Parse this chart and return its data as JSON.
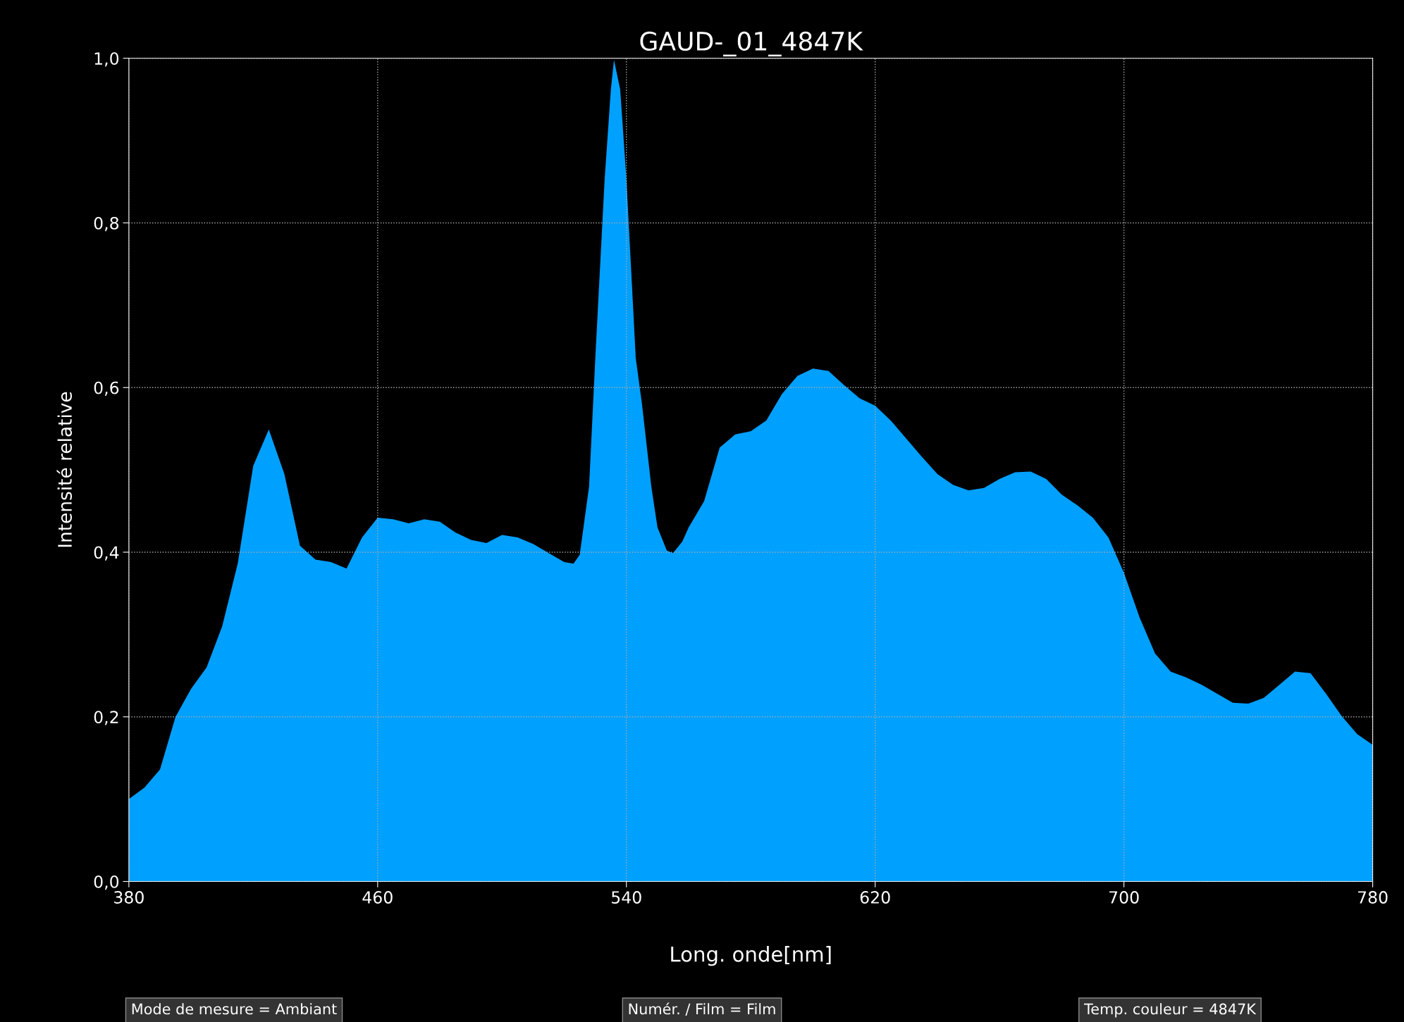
{
  "chart_data": {
    "type": "area",
    "title": "GAUD-_01_4847K",
    "xlabel": "Long. onde[nm]",
    "ylabel": "Intensité relative",
    "x": [
      380,
      385,
      390,
      395,
      400,
      405,
      410,
      415,
      420,
      425,
      430,
      435,
      440,
      445,
      450,
      455,
      460,
      465,
      470,
      475,
      480,
      485,
      490,
      495,
      500,
      505,
      510,
      515,
      520,
      523,
      525,
      528,
      530,
      533,
      535,
      536,
      538,
      540,
      543,
      545,
      548,
      550,
      553,
      555,
      558,
      560,
      565,
      570,
      575,
      580,
      585,
      590,
      595,
      600,
      605,
      610,
      615,
      620,
      625,
      630,
      635,
      640,
      645,
      650,
      655,
      660,
      665,
      670,
      675,
      680,
      685,
      690,
      695,
      700,
      705,
      710,
      715,
      720,
      725,
      730,
      735,
      740,
      745,
      750,
      755,
      760,
      765,
      770,
      775,
      780
    ],
    "series": [
      {
        "color": "#00a0ff",
        "values": [
          0.1,
          0.114,
          0.136,
          0.2,
          0.234,
          0.26,
          0.31,
          0.386,
          0.505,
          0.549,
          0.495,
          0.408,
          0.391,
          0.388,
          0.38,
          0.418,
          0.442,
          0.44,
          0.435,
          0.44,
          0.437,
          0.424,
          0.415,
          0.411,
          0.421,
          0.418,
          0.41,
          0.399,
          0.388,
          0.386,
          0.397,
          0.48,
          0.636,
          0.853,
          0.962,
          0.998,
          0.962,
          0.853,
          0.636,
          0.58,
          0.48,
          0.43,
          0.402,
          0.399,
          0.413,
          0.43,
          0.462,
          0.527,
          0.543,
          0.547,
          0.56,
          0.592,
          0.614,
          0.623,
          0.62,
          0.603,
          0.587,
          0.578,
          0.56,
          0.538,
          0.516,
          0.495,
          0.482,
          0.475,
          0.478,
          0.489,
          0.497,
          0.498,
          0.489,
          0.47,
          0.457,
          0.442,
          0.418,
          0.375,
          0.321,
          0.277,
          0.255,
          0.248,
          0.239,
          0.228,
          0.217,
          0.216,
          0.223,
          0.239,
          0.255,
          0.253,
          0.228,
          0.201,
          0.179,
          0.166
        ]
      }
    ],
    "xlim": [
      380,
      780
    ],
    "xticks": [
      380,
      460,
      540,
      620,
      700,
      780
    ],
    "ylim": [
      0,
      1.0
    ],
    "yticks": [
      {
        "value": 0,
        "label": "0,0"
      },
      {
        "value": 0.2,
        "label": "0,2"
      },
      {
        "value": 0.4,
        "label": "0,4"
      },
      {
        "value": 0.6,
        "label": "0,6"
      },
      {
        "value": 0.8,
        "label": "0,8"
      },
      {
        "value": 1.0,
        "label": "1,0"
      }
    ],
    "grid": true,
    "legend": false,
    "annotations": [
      "Mode de mesure = Ambiant",
      "Numér. / Film = Film",
      "Temp. couleur = 4847K"
    ]
  }
}
